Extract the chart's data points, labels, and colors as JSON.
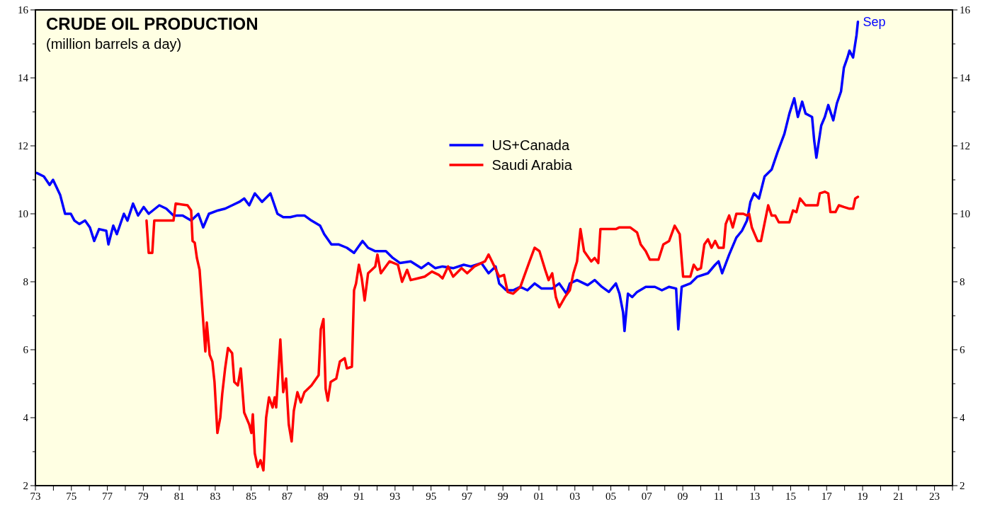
{
  "chart_data": {
    "type": "line",
    "title": "CRUDE OIL PRODUCTION",
    "subtitle": "(million barrels a day)",
    "xlim": [
      1973,
      2024
    ],
    "xticks": [
      {
        "value": 1973,
        "label": "73"
      },
      {
        "value": 1974,
        "label": null
      },
      {
        "value": 1975,
        "label": "75"
      },
      {
        "value": 1976,
        "label": null
      },
      {
        "value": 1977,
        "label": "77"
      },
      {
        "value": 1978,
        "label": null
      },
      {
        "value": 1979,
        "label": "79"
      },
      {
        "value": 1980,
        "label": null
      },
      {
        "value": 1981,
        "label": "81"
      },
      {
        "value": 1982,
        "label": null
      },
      {
        "value": 1983,
        "label": "83"
      },
      {
        "value": 1984,
        "label": null
      },
      {
        "value": 1985,
        "label": "85"
      },
      {
        "value": 1986,
        "label": null
      },
      {
        "value": 1987,
        "label": "87"
      },
      {
        "value": 1988,
        "label": null
      },
      {
        "value": 1989,
        "label": "89"
      },
      {
        "value": 1990,
        "label": null
      },
      {
        "value": 1991,
        "label": "91"
      },
      {
        "value": 1992,
        "label": null
      },
      {
        "value": 1993,
        "label": "93"
      },
      {
        "value": 1994,
        "label": null
      },
      {
        "value": 1995,
        "label": "95"
      },
      {
        "value": 1996,
        "label": null
      },
      {
        "value": 1997,
        "label": "97"
      },
      {
        "value": 1998,
        "label": null
      },
      {
        "value": 1999,
        "label": "99"
      },
      {
        "value": 2000,
        "label": null
      },
      {
        "value": 2001,
        "label": "01"
      },
      {
        "value": 2002,
        "label": null
      },
      {
        "value": 2003,
        "label": "03"
      },
      {
        "value": 2004,
        "label": null
      },
      {
        "value": 2005,
        "label": "05"
      },
      {
        "value": 2006,
        "label": null
      },
      {
        "value": 2007,
        "label": "07"
      },
      {
        "value": 2008,
        "label": null
      },
      {
        "value": 2009,
        "label": "09"
      },
      {
        "value": 2010,
        "label": null
      },
      {
        "value": 2011,
        "label": "11"
      },
      {
        "value": 2012,
        "label": null
      },
      {
        "value": 2013,
        "label": "13"
      },
      {
        "value": 2014,
        "label": null
      },
      {
        "value": 2015,
        "label": "15"
      },
      {
        "value": 2016,
        "label": null
      },
      {
        "value": 2017,
        "label": "17"
      },
      {
        "value": 2018,
        "label": null
      },
      {
        "value": 2019,
        "label": "19"
      },
      {
        "value": 2020,
        "label": null
      },
      {
        "value": 2021,
        "label": "21"
      },
      {
        "value": 2022,
        "label": null
      },
      {
        "value": 2023,
        "label": "23"
      },
      {
        "value": 2024,
        "label": null
      }
    ],
    "ylim": [
      2,
      16
    ],
    "yticks": [
      2,
      {
        "value": 3,
        "label": null
      },
      4,
      {
        "value": 5,
        "label": null
      },
      6,
      {
        "value": 7,
        "label": null
      },
      8,
      {
        "value": 9,
        "label": null
      },
      10,
      {
        "value": 11,
        "label": null
      },
      12,
      {
        "value": 13,
        "label": null
      },
      14,
      {
        "value": 15,
        "label": null
      },
      16
    ],
    "y2lim": [
      2,
      16
    ],
    "y2ticks": [
      2,
      {
        "value": 3,
        "label": null
      },
      4,
      {
        "value": 5,
        "label": null
      },
      6,
      {
        "value": 7,
        "label": null
      },
      8,
      {
        "value": 9,
        "label": null
      },
      10,
      {
        "value": 11,
        "label": null
      },
      12,
      {
        "value": 13,
        "label": null
      },
      14,
      {
        "value": 15,
        "label": null
      },
      16
    ],
    "grid": false,
    "legend": "top",
    "marker": "none",
    "line_style": "solid",
    "annotations": [
      {
        "text": "Sep",
        "x": 2018.74,
        "y": 15.65
      }
    ],
    "series": [
      {
        "name": "US+Canada",
        "color": "#0000ff",
        "x": [
          1973.08,
          1973.47,
          1973.79,
          1973.98,
          1974.38,
          1974.65,
          1974.97,
          1975.17,
          1975.44,
          1975.76,
          1976.03,
          1976.27,
          1976.54,
          1976.94,
          1977.06,
          1977.33,
          1977.53,
          1977.92,
          1978.12,
          1978.43,
          1978.71,
          1979.02,
          1979.3,
          1979.89,
          1980.28,
          1980.68,
          1981.19,
          1981.66,
          1982.06,
          1982.33,
          1982.65,
          1983.16,
          1983.55,
          1983.94,
          1984.34,
          1984.61,
          1984.89,
          1985.2,
          1985.6,
          1986.07,
          1986.46,
          1986.78,
          1987.17,
          1987.57,
          1987.96,
          1988.35,
          1988.83,
          1989.06,
          1989.46,
          1989.85,
          1990.32,
          1990.72,
          1991.19,
          1991.5,
          1991.9,
          1992.49,
          1992.88,
          1993.28,
          1993.87,
          1994.46,
          1994.85,
          1995.24,
          1995.64,
          1996.23,
          1996.82,
          1997.21,
          1997.8,
          1998.2,
          1998.59,
          1998.79,
          1999.18,
          1999.57,
          1999.97,
          2000.36,
          2000.76,
          2001.15,
          2001.74,
          2002.13,
          2002.53,
          2002.72,
          2003.12,
          2003.71,
          2004.1,
          2004.5,
          2004.89,
          2005.28,
          2005.48,
          2005.68,
          2005.76,
          2005.95,
          2006.19,
          2006.46,
          2006.94,
          2007.45,
          2007.84,
          2008.24,
          2008.63,
          2008.75,
          2008.94,
          2009.42,
          2009.81,
          2010.4,
          2010.8,
          2010.99,
          2011.19,
          2011.58,
          2011.98,
          2012.29,
          2012.57,
          2012.76,
          2012.96,
          2013.24,
          2013.55,
          2013.94,
          2014.26,
          2014.65,
          2014.93,
          2015.2,
          2015.4,
          2015.64,
          2015.83,
          2016.19,
          2016.31,
          2016.43,
          2016.7,
          2016.9,
          2017.09,
          2017.37,
          2017.57,
          2017.8,
          2017.96,
          2018.16,
          2018.27,
          2018.47,
          2018.66,
          2018.74
        ],
        "values": [
          11.2,
          11.1,
          10.85,
          11.0,
          10.55,
          10.0,
          10.0,
          9.8,
          9.7,
          9.8,
          9.6,
          9.2,
          9.55,
          9.5,
          9.1,
          9.65,
          9.4,
          10.0,
          9.8,
          10.3,
          9.95,
          10.2,
          10.0,
          10.25,
          10.15,
          9.95,
          9.95,
          9.8,
          10.0,
          9.6,
          10.0,
          10.1,
          10.15,
          10.25,
          10.35,
          10.45,
          10.25,
          10.6,
          10.35,
          10.6,
          10.0,
          9.9,
          9.9,
          9.95,
          9.95,
          9.8,
          9.65,
          9.4,
          9.1,
          9.1,
          9.0,
          8.85,
          9.2,
          9.0,
          8.9,
          8.9,
          8.7,
          8.55,
          8.6,
          8.4,
          8.55,
          8.4,
          8.45,
          8.4,
          8.5,
          8.45,
          8.55,
          8.25,
          8.45,
          7.95,
          7.75,
          7.75,
          7.85,
          7.75,
          7.95,
          7.8,
          7.8,
          7.95,
          7.65,
          7.95,
          8.05,
          7.9,
          8.05,
          7.85,
          7.7,
          7.95,
          7.65,
          7.1,
          6.55,
          7.65,
          7.55,
          7.7,
          7.85,
          7.85,
          7.75,
          7.85,
          7.8,
          6.6,
          7.85,
          7.95,
          8.15,
          8.25,
          8.5,
          8.6,
          8.25,
          8.8,
          9.3,
          9.5,
          9.8,
          10.35,
          10.6,
          10.45,
          11.1,
          11.3,
          11.8,
          12.35,
          12.95,
          13.4,
          12.85,
          13.3,
          12.95,
          12.85,
          12.15,
          11.65,
          12.6,
          12.85,
          13.2,
          12.75,
          13.25,
          13.6,
          14.3,
          14.6,
          14.8,
          14.6,
          15.25,
          15.65
        ]
      },
      {
        "name": "Saudi Arabia",
        "color": "#ff0000",
        "x": [
          1979.18,
          1979.3,
          1979.5,
          1979.61,
          1980.09,
          1980.68,
          1980.8,
          1981.46,
          1981.66,
          1981.74,
          1981.86,
          1981.98,
          1982.13,
          1982.29,
          1982.45,
          1982.53,
          1982.69,
          1982.84,
          1982.96,
          1983.12,
          1983.28,
          1983.39,
          1983.55,
          1983.71,
          1983.94,
          1984.06,
          1984.26,
          1984.42,
          1984.61,
          1984.89,
          1985.01,
          1985.09,
          1985.2,
          1985.36,
          1985.52,
          1985.68,
          1985.83,
          1985.99,
          1986.19,
          1986.31,
          1986.39,
          1986.62,
          1986.78,
          1986.94,
          1987.09,
          1987.25,
          1987.37,
          1987.57,
          1987.76,
          1987.96,
          1988.35,
          1988.75,
          1988.87,
          1989.02,
          1989.14,
          1989.26,
          1989.42,
          1989.73,
          1989.93,
          1990.2,
          1990.32,
          1990.6,
          1990.72,
          1990.83,
          1990.99,
          1991.15,
          1991.31,
          1991.5,
          1991.9,
          1992.02,
          1992.21,
          1992.69,
          1993.16,
          1993.39,
          1993.67,
          1993.87,
          1994.26,
          1994.65,
          1995.05,
          1995.44,
          1995.64,
          1995.95,
          1996.23,
          1996.7,
          1997.01,
          1997.41,
          1998.0,
          1998.2,
          1998.39,
          1998.79,
          1999.06,
          1999.26,
          1999.57,
          1999.97,
          2000.17,
          2000.48,
          2000.76,
          2001.03,
          2001.35,
          2001.54,
          2001.74,
          2001.94,
          2002.13,
          2002.45,
          2002.72,
          2002.92,
          2003.12,
          2003.31,
          2003.51,
          2003.91,
          2004.1,
          2004.3,
          2004.42,
          2005.28,
          2005.48,
          2006.07,
          2006.46,
          2006.66,
          2006.94,
          2007.17,
          2007.65,
          2007.92,
          2008.24,
          2008.55,
          2008.83,
          2009.02,
          2009.42,
          2009.61,
          2009.81,
          2010.01,
          2010.2,
          2010.4,
          2010.6,
          2010.8,
          2010.99,
          2011.27,
          2011.39,
          2011.58,
          2011.78,
          2011.98,
          2012.17,
          2012.37,
          2012.57,
          2012.69,
          2012.84,
          2013.16,
          2013.35,
          2013.75,
          2013.94,
          2014.14,
          2014.34,
          2014.73,
          2014.93,
          2015.13,
          2015.32,
          2015.52,
          2015.83,
          2016.11,
          2016.5,
          2016.62,
          2016.9,
          2017.09,
          2017.21,
          2017.49,
          2017.68,
          2017.96,
          2018.27,
          2018.47,
          2018.59,
          2018.74
        ],
        "values": [
          9.8,
          8.85,
          8.85,
          9.8,
          9.8,
          9.8,
          10.3,
          10.25,
          10.1,
          9.2,
          9.15,
          8.7,
          8.35,
          7.15,
          5.95,
          6.8,
          5.85,
          5.65,
          5.05,
          3.55,
          4.0,
          4.7,
          5.45,
          6.05,
          5.9,
          5.05,
          4.95,
          5.45,
          4.15,
          3.8,
          3.55,
          4.1,
          2.95,
          2.55,
          2.75,
          2.45,
          4.0,
          4.6,
          4.3,
          4.6,
          4.3,
          6.3,
          4.75,
          5.15,
          3.8,
          3.3,
          4.2,
          4.75,
          4.45,
          4.75,
          4.95,
          5.25,
          6.6,
          6.9,
          4.85,
          4.5,
          5.05,
          5.15,
          5.65,
          5.75,
          5.45,
          5.5,
          7.75,
          7.95,
          8.5,
          8.1,
          7.45,
          8.25,
          8.45,
          8.8,
          8.25,
          8.6,
          8.5,
          8.0,
          8.35,
          8.05,
          8.1,
          8.15,
          8.3,
          8.2,
          8.1,
          8.45,
          8.15,
          8.4,
          8.25,
          8.45,
          8.6,
          8.8,
          8.6,
          8.15,
          8.2,
          7.7,
          7.65,
          7.85,
          8.15,
          8.6,
          9.0,
          8.9,
          8.35,
          8.05,
          8.25,
          7.55,
          7.25,
          7.55,
          7.75,
          8.25,
          8.6,
          9.55,
          8.9,
          8.6,
          8.7,
          8.55,
          9.55,
          9.55,
          9.6,
          9.6,
          9.45,
          9.1,
          8.9,
          8.65,
          8.65,
          9.1,
          9.2,
          9.65,
          9.4,
          8.15,
          8.15,
          8.5,
          8.35,
          8.4,
          9.1,
          9.25,
          9.0,
          9.2,
          9.0,
          9.0,
          9.7,
          9.95,
          9.6,
          10.0,
          10.0,
          10.0,
          9.95,
          10.0,
          9.6,
          9.2,
          9.2,
          10.25,
          9.95,
          9.95,
          9.75,
          9.75,
          9.75,
          10.1,
          10.05,
          10.45,
          10.25,
          10.25,
          10.25,
          10.6,
          10.65,
          10.6,
          10.05,
          10.05,
          10.25,
          10.2,
          10.15,
          10.15,
          10.45,
          10.5
        ]
      }
    ]
  }
}
